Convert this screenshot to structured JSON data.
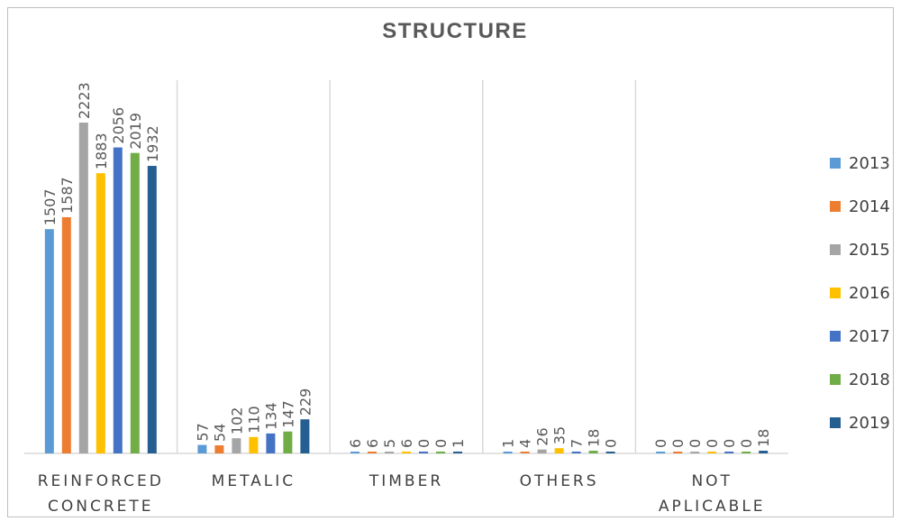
{
  "chart_data": {
    "type": "bar",
    "title": "STRUCTURE",
    "categories": [
      [
        "REINFORCED",
        "CONCRETE"
      ],
      [
        "METALIC"
      ],
      [
        "TIMBER"
      ],
      [
        "OTHERS"
      ],
      [
        "NOT",
        "APLICABLE"
      ]
    ],
    "series": [
      {
        "name": "2013",
        "color": "#5b9bd5",
        "values": [
          1507,
          57,
          6,
          1,
          0
        ]
      },
      {
        "name": "2014",
        "color": "#ed7d31",
        "values": [
          1587,
          54,
          6,
          4,
          0
        ]
      },
      {
        "name": "2015",
        "color": "#a5a5a5",
        "values": [
          2223,
          102,
          5,
          26,
          0
        ]
      },
      {
        "name": "2016",
        "color": "#ffc000",
        "values": [
          1883,
          110,
          6,
          35,
          0
        ]
      },
      {
        "name": "2017",
        "color": "#4472c4",
        "values": [
          2056,
          134,
          0,
          7,
          0
        ]
      },
      {
        "name": "2018",
        "color": "#70ad47",
        "values": [
          2019,
          147,
          0,
          18,
          0
        ]
      },
      {
        "name": "2019",
        "color": "#255e91",
        "values": [
          1932,
          229,
          1,
          0,
          18
        ]
      }
    ],
    "ylim": [
      0,
      2500
    ],
    "grid": "vertical category separators",
    "legend": "right"
  }
}
